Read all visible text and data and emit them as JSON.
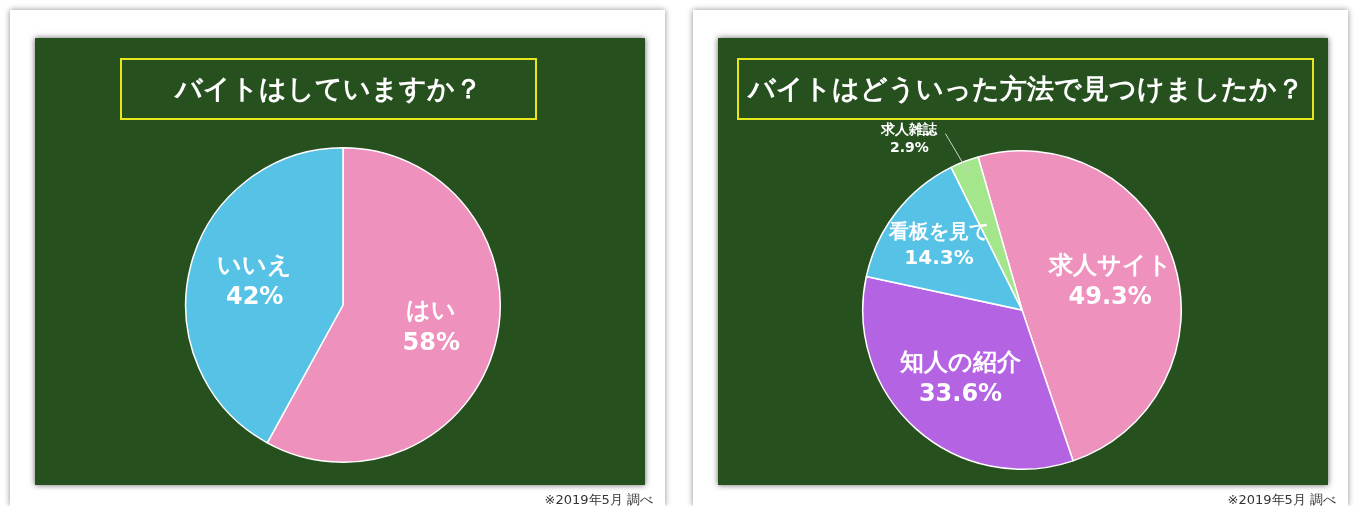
{
  "chart_data": [
    {
      "type": "pie",
      "title": "バイトはしていますか？",
      "categories": [
        "はい",
        "いいえ"
      ],
      "values": [
        58,
        42
      ],
      "colors": [
        "#ee92bd",
        "#55c2e6"
      ],
      "value_labels": [
        "58%",
        "42%"
      ],
      "annotations": [
        "※2019年5月 調べ"
      ]
    },
    {
      "type": "pie",
      "title": "バイトはどういった方法で見つけましたか？",
      "categories": [
        "求人サイト",
        "知人の紹介",
        "看板を見て",
        "求人雑誌"
      ],
      "values": [
        49.3,
        33.6,
        14.3,
        2.9
      ],
      "colors": [
        "#ee92bd",
        "#b464e2",
        "#55c2e6",
        "#a3e68b"
      ],
      "value_labels": [
        "49.3%",
        "33.6%",
        "14.3%",
        "2.9%"
      ],
      "annotations": [
        "※2019年5月 調べ"
      ]
    }
  ]
}
